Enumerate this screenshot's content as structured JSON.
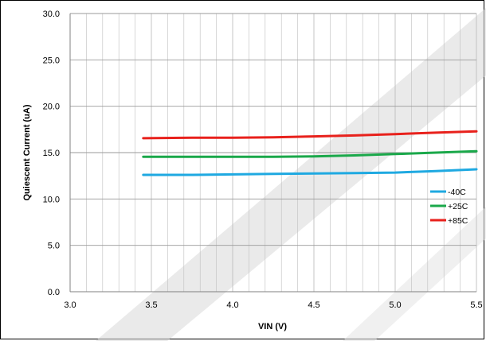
{
  "chart_data": {
    "type": "line",
    "title": "",
    "xlabel": "VIN (V)",
    "ylabel": "Quiescent Current (uA)",
    "xlim": [
      3.0,
      5.5
    ],
    "ylim": [
      0.0,
      30.0
    ],
    "x_ticks": [
      "3.0",
      "3.5",
      "4.0",
      "4.5",
      "5.0",
      "5.5"
    ],
    "y_ticks": [
      "0.0",
      "5.0",
      "10.0",
      "15.0",
      "20.0",
      "25.0",
      "30.0"
    ],
    "grid": true,
    "legend_position": "right",
    "series": [
      {
        "name": "-40C",
        "color": "#1fa9e1",
        "x": [
          3.45,
          3.75,
          4.0,
          4.25,
          4.5,
          4.75,
          5.0,
          5.25,
          5.5
        ],
        "y": [
          12.6,
          12.6,
          12.65,
          12.7,
          12.75,
          12.8,
          12.85,
          13.0,
          13.2
        ]
      },
      {
        "name": "+25C",
        "color": "#1aa84a",
        "x": [
          3.45,
          3.75,
          4.0,
          4.25,
          4.5,
          4.75,
          5.0,
          5.25,
          5.5
        ],
        "y": [
          14.55,
          14.55,
          14.55,
          14.55,
          14.6,
          14.7,
          14.85,
          15.0,
          15.15
        ]
      },
      {
        "name": "+85C",
        "color": "#e8211c",
        "x": [
          3.45,
          3.75,
          4.0,
          4.25,
          4.5,
          4.75,
          5.0,
          5.25,
          5.5
        ],
        "y": [
          16.55,
          16.6,
          16.6,
          16.65,
          16.75,
          16.85,
          17.0,
          17.15,
          17.3
        ]
      }
    ]
  }
}
